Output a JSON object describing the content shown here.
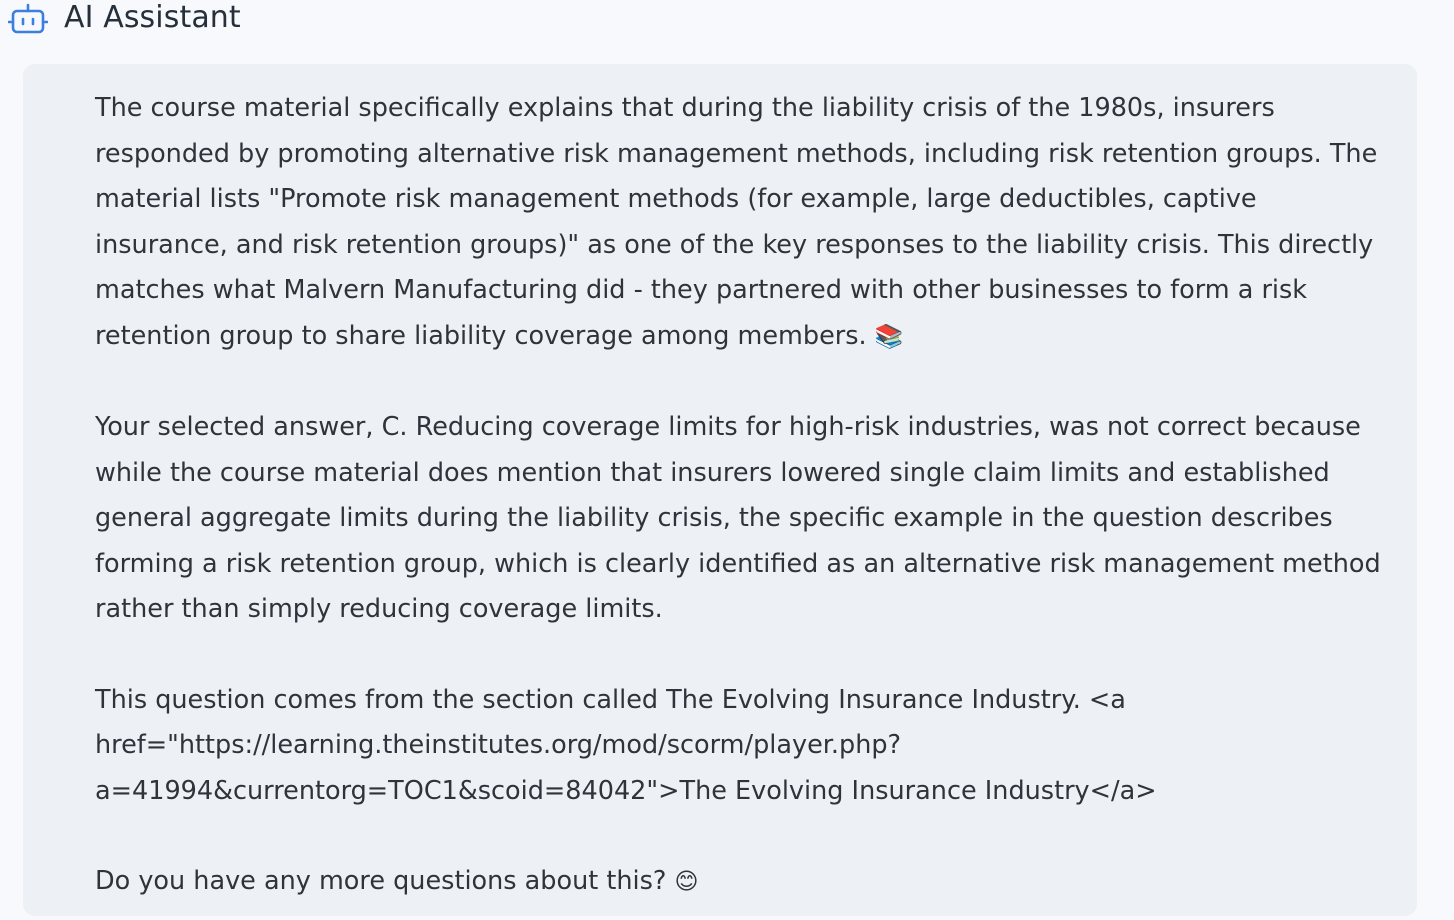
{
  "header": {
    "title": "AI Assistant",
    "icon": "robot-icon",
    "accent": "#3b7fe0"
  },
  "message": {
    "paragraphs": [
      "The course material specifically explains that during the liability crisis of the 1980s, insurers responded by promoting alternative risk management methods, including risk retention groups. The material lists \"Promote risk management methods (for example, large deductibles, captive insurance, and risk retention groups)\" as one of the key responses to the liability crisis. This directly matches what Malvern Manufacturing did - they partnered with other businesses to form a risk retention group to share liability coverage among members.",
      "Your selected answer, C. Reducing coverage limits for high-risk industries, was not correct because while the course material does mention that insurers lowered single claim limits and established general aggregate limits during the liability crisis, the specific example in the question describes forming a risk retention group, which is clearly identified as an alternative risk management method rather than simply reducing coverage limits.",
      "This question comes from the section called The Evolving Insurance Industry. <a href=\"https://learning.theinstitutes.org/mod/scorm/player.php?a=41994&currentorg=TOC1&scoid=84042\">The Evolving Insurance Industry</a>",
      "Do you have any more questions about this?"
    ],
    "emojis": {
      "books": "📚",
      "smile": "😊"
    },
    "background": "#edf0f4"
  }
}
